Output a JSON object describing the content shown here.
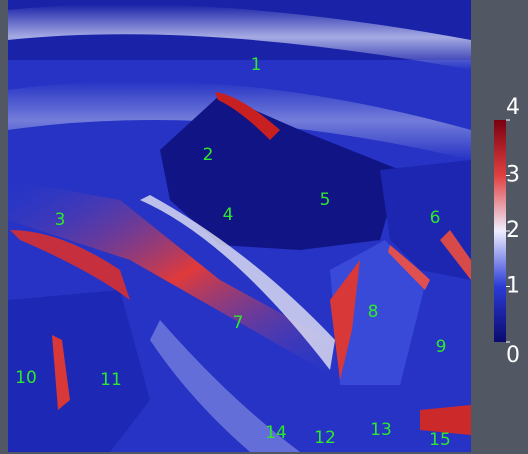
{
  "grain_labels": [
    "1",
    "2",
    "3",
    "4",
    "5",
    "6",
    "7",
    "8",
    "9",
    "10",
    "11",
    "12",
    "13",
    "14",
    "15"
  ],
  "colorbar": {
    "range": [
      0,
      4
    ],
    "ticks": [
      0,
      1,
      2,
      3,
      4
    ]
  }
}
